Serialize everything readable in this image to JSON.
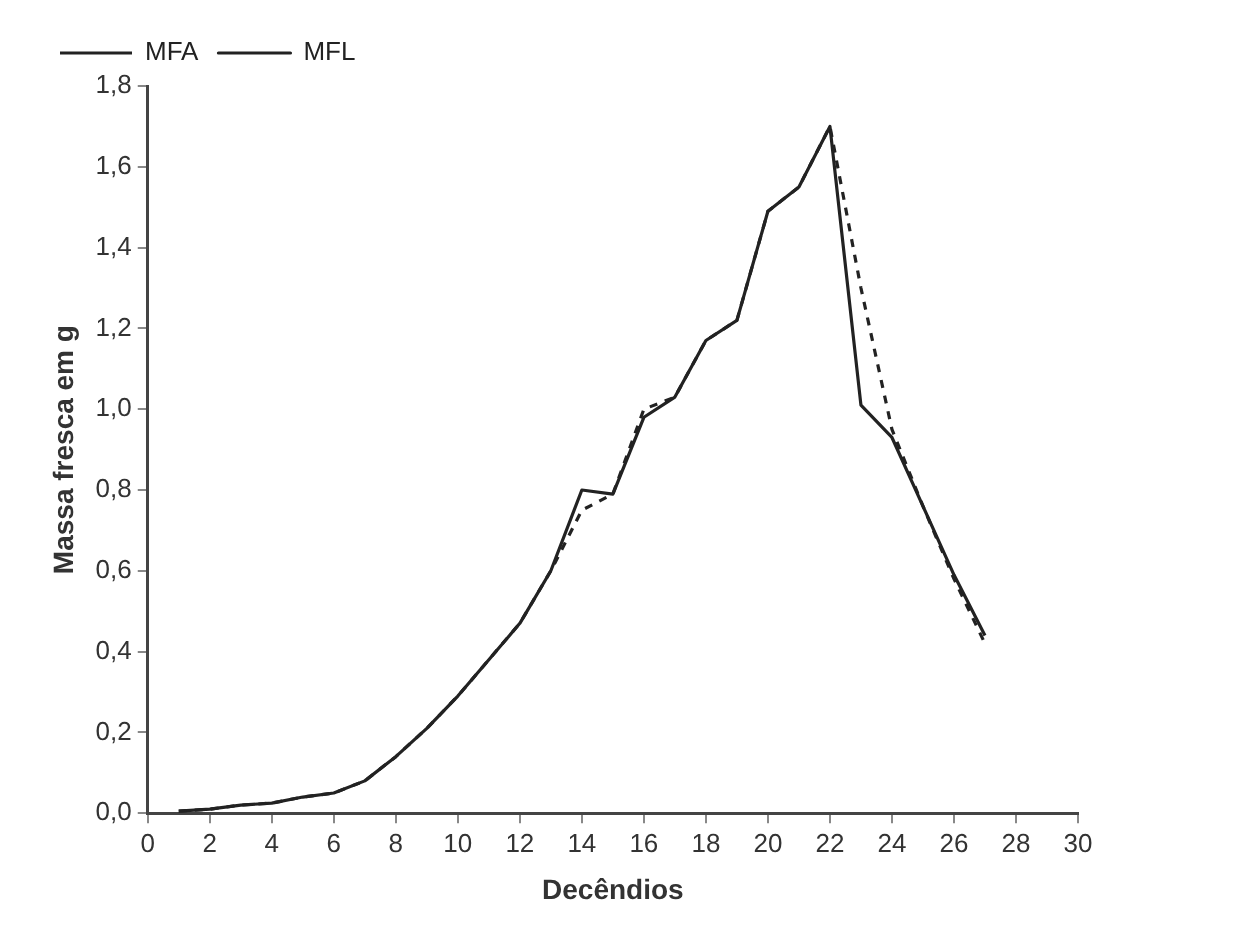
{
  "chart_data": {
    "type": "line",
    "xlabel": "Decêndios",
    "ylabel": "Massa fresca em g",
    "x": [
      1,
      2,
      3,
      4,
      5,
      6,
      7,
      8,
      9,
      10,
      11,
      12,
      13,
      14,
      15,
      16,
      17,
      18,
      19,
      20,
      21,
      22,
      23,
      24,
      25,
      26,
      27
    ],
    "series": [
      {
        "name": "MFA",
        "color": "#222222",
        "line_style": "dashed",
        "values": [
          0.005,
          0.01,
          0.02,
          0.025,
          0.04,
          0.05,
          0.08,
          0.14,
          0.21,
          0.29,
          0.38,
          0.47,
          0.6,
          0.75,
          0.79,
          1.0,
          1.03,
          1.17,
          1.22,
          1.49,
          1.55,
          1.7,
          1.3,
          0.95,
          0.76,
          0.58,
          0.42
        ]
      },
      {
        "name": "MFL",
        "color": "#222222",
        "line_style": "solid",
        "values": [
          0.005,
          0.01,
          0.02,
          0.025,
          0.04,
          0.05,
          0.08,
          0.14,
          0.21,
          0.29,
          0.38,
          0.47,
          0.6,
          0.8,
          0.79,
          0.98,
          1.03,
          1.17,
          1.22,
          1.49,
          1.55,
          1.7,
          1.01,
          0.93,
          0.76,
          0.59,
          0.44
        ]
      }
    ],
    "xlim": [
      0,
      30
    ],
    "xticks": [
      0,
      2,
      4,
      6,
      8,
      10,
      12,
      14,
      16,
      18,
      20,
      22,
      24,
      26,
      28,
      30
    ],
    "ylim": [
      0,
      1.8
    ],
    "yticks": [
      {
        "value": 0,
        "label": "0,0"
      },
      {
        "value": 0.2,
        "label": "0,2"
      },
      {
        "value": 0.4,
        "label": "0,4"
      },
      {
        "value": 0.6,
        "label": "0,6"
      },
      {
        "value": 0.8,
        "label": "0,8"
      },
      {
        "value": 1.0,
        "label": "1,0"
      },
      {
        "value": 1.2,
        "label": "1,2"
      },
      {
        "value": 1.4,
        "label": "1,4"
      },
      {
        "value": 1.6,
        "label": "1,6"
      },
      {
        "value": 1.8,
        "label": "1,8"
      }
    ],
    "grid": false,
    "legend": "top left",
    "marker": "none"
  }
}
